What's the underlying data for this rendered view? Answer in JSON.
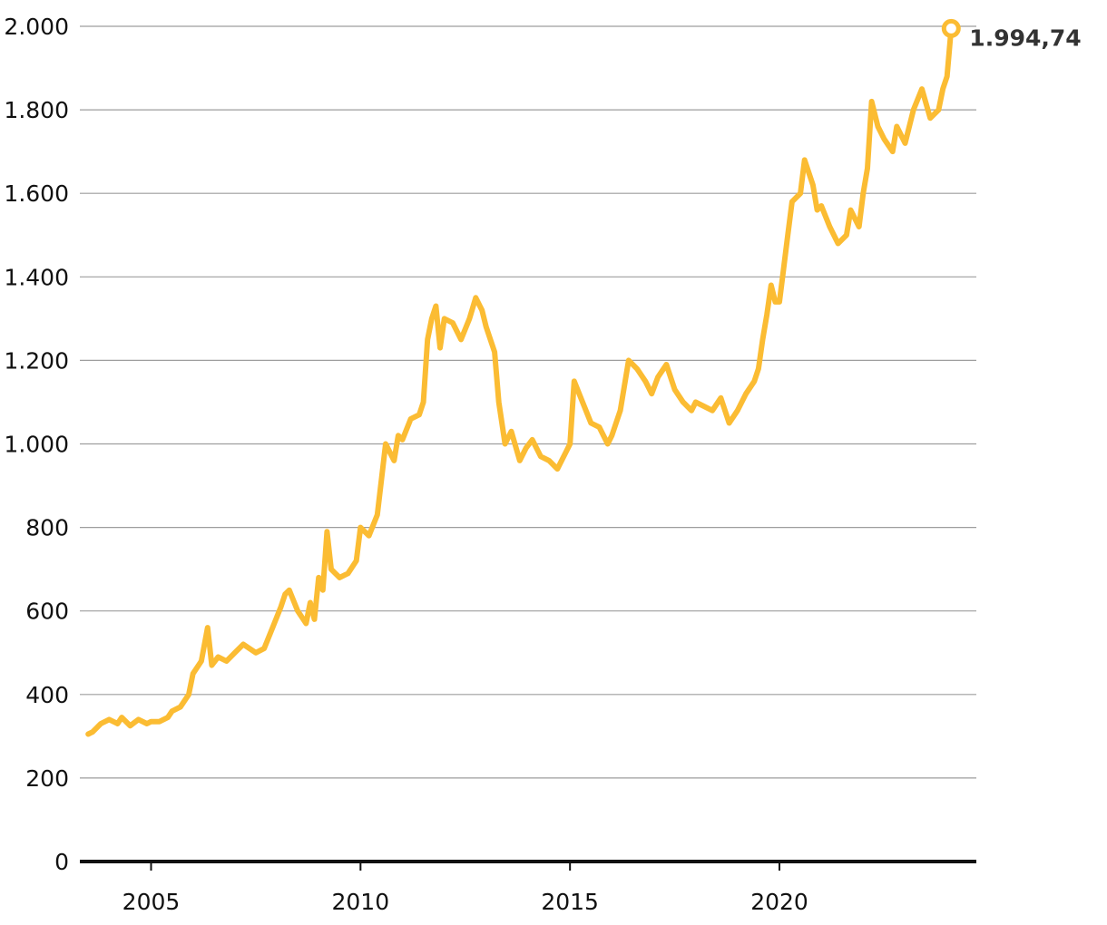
{
  "chart_data": {
    "type": "line",
    "title": "",
    "xlabel": "",
    "ylabel": "",
    "xlim": [
      2003.3,
      2024.7
    ],
    "ylim": [
      0,
      2000
    ],
    "y_ticks": [
      {
        "value": 0,
        "label": "0"
      },
      {
        "value": 200,
        "label": "200"
      },
      {
        "value": 400,
        "label": "400"
      },
      {
        "value": 600,
        "label": "600"
      },
      {
        "value": 800,
        "label": "800"
      },
      {
        "value": 1000,
        "label": "1.000"
      },
      {
        "value": 1200,
        "label": "1.200"
      },
      {
        "value": 1400,
        "label": "1.400"
      },
      {
        "value": 1600,
        "label": "1.600"
      },
      {
        "value": 1800,
        "label": "1.800"
      },
      {
        "value": 2000,
        "label": "2.000"
      }
    ],
    "x_ticks": [
      {
        "value": 2005,
        "label": "2005"
      },
      {
        "value": 2010,
        "label": "2010"
      },
      {
        "value": 2015,
        "label": "2015"
      },
      {
        "value": 2020,
        "label": "2020"
      }
    ],
    "grid": true,
    "series": [
      {
        "color": "#fbbc33",
        "x": [
          2003.5,
          2003.6,
          2003.8,
          2004.0,
          2004.2,
          2004.3,
          2004.5,
          2004.7,
          2004.9,
          2005.0,
          2005.2,
          2005.4,
          2005.5,
          2005.7,
          2005.9,
          2006.0,
          2006.2,
          2006.35,
          2006.45,
          2006.6,
          2006.8,
          2007.0,
          2007.2,
          2007.5,
          2007.7,
          2007.9,
          2008.1,
          2008.2,
          2008.3,
          2008.5,
          2008.7,
          2008.8,
          2008.9,
          2009.0,
          2009.1,
          2009.2,
          2009.3,
          2009.5,
          2009.7,
          2009.9,
          2010.0,
          2010.2,
          2010.4,
          2010.6,
          2010.8,
          2010.9,
          2011.0,
          2011.2,
          2011.4,
          2011.5,
          2011.6,
          2011.7,
          2011.8,
          2011.9,
          2012.0,
          2012.2,
          2012.4,
          2012.6,
          2012.75,
          2012.9,
          2013.0,
          2013.2,
          2013.3,
          2013.45,
          2013.6,
          2013.8,
          2013.95,
          2014.1,
          2014.3,
          2014.5,
          2014.7,
          2014.9,
          2015.0,
          2015.1,
          2015.3,
          2015.5,
          2015.7,
          2015.9,
          2016.0,
          2016.2,
          2016.4,
          2016.6,
          2016.8,
          2016.95,
          2017.1,
          2017.3,
          2017.5,
          2017.7,
          2017.9,
          2018.0,
          2018.2,
          2018.4,
          2018.6,
          2018.8,
          2019.0,
          2019.2,
          2019.4,
          2019.5,
          2019.6,
          2019.7,
          2019.8,
          2019.9,
          2020.0,
          2020.1,
          2020.2,
          2020.3,
          2020.5,
          2020.6,
          2020.8,
          2020.9,
          2021.0,
          2021.2,
          2021.4,
          2021.6,
          2021.7,
          2021.9,
          2022.0,
          2022.1,
          2022.2,
          2022.35,
          2022.5,
          2022.7,
          2022.8,
          2023.0,
          2023.2,
          2023.4,
          2023.6,
          2023.8,
          2023.9,
          2024.0,
          2024.1
        ],
        "values": [
          305,
          310,
          330,
          340,
          330,
          345,
          325,
          340,
          330,
          335,
          335,
          345,
          360,
          370,
          400,
          450,
          480,
          560,
          470,
          490,
          480,
          500,
          520,
          500,
          510,
          560,
          610,
          640,
          650,
          600,
          570,
          620,
          580,
          680,
          650,
          790,
          700,
          680,
          690,
          720,
          800,
          780,
          830,
          1000,
          960,
          1020,
          1010,
          1060,
          1070,
          1100,
          1250,
          1300,
          1330,
          1230,
          1300,
          1290,
          1250,
          1300,
          1350,
          1320,
          1280,
          1220,
          1100,
          1000,
          1030,
          960,
          990,
          1010,
          970,
          960,
          940,
          980,
          1000,
          1150,
          1100,
          1050,
          1040,
          1000,
          1020,
          1080,
          1200,
          1180,
          1150,
          1120,
          1160,
          1190,
          1130,
          1100,
          1080,
          1100,
          1090,
          1080,
          1110,
          1050,
          1080,
          1120,
          1150,
          1180,
          1250,
          1310,
          1380,
          1340,
          1340,
          1420,
          1500,
          1580,
          1600,
          1680,
          1620,
          1560,
          1570,
          1520,
          1480,
          1500,
          1560,
          1520,
          1600,
          1660,
          1820,
          1760,
          1730,
          1700,
          1760,
          1720,
          1800,
          1850,
          1780,
          1800,
          1850,
          1880,
          1994.74
        ],
        "end_label": "1.994,74"
      }
    ]
  }
}
